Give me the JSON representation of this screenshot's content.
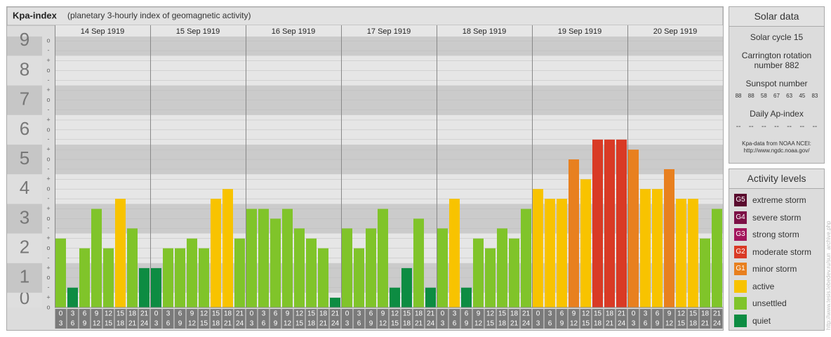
{
  "chart_data": {
    "type": "bar",
    "title": "Kpa-index",
    "subtitle": "(planetary 3-hourly index of geomagnetic activity)",
    "ylim": [
      0,
      9.15
    ],
    "yticks": [
      0,
      1,
      2,
      3,
      4,
      5,
      6,
      7,
      8,
      9
    ],
    "minor_yticks": [
      {
        "value": 0,
        "label": "o"
      },
      {
        "value": 0.33,
        "label": "+"
      },
      {
        "value": 0.67,
        "label": "-"
      },
      {
        "value": 1,
        "label": "o"
      },
      {
        "value": 1.33,
        "label": "+"
      },
      {
        "value": 1.67,
        "label": "-"
      },
      {
        "value": 2,
        "label": "o"
      },
      {
        "value": 2.33,
        "label": "+"
      },
      {
        "value": 2.67,
        "label": "-"
      },
      {
        "value": 3,
        "label": "o"
      },
      {
        "value": 3.33,
        "label": "+"
      },
      {
        "value": 3.67,
        "label": "-"
      },
      {
        "value": 4,
        "label": "o"
      },
      {
        "value": 4.33,
        "label": "+"
      },
      {
        "value": 4.67,
        "label": "-"
      },
      {
        "value": 5,
        "label": "o"
      },
      {
        "value": 5.33,
        "label": "+"
      },
      {
        "value": 5.67,
        "label": "-"
      },
      {
        "value": 6,
        "label": "o"
      },
      {
        "value": 6.33,
        "label": "+"
      },
      {
        "value": 6.67,
        "label": "-"
      },
      {
        "value": 7,
        "label": "o"
      },
      {
        "value": 7.33,
        "label": "+"
      },
      {
        "value": 7.67,
        "label": "-"
      },
      {
        "value": 8,
        "label": "o"
      },
      {
        "value": 8.33,
        "label": "+"
      },
      {
        "value": 8.67,
        "label": "-"
      },
      {
        "value": 9,
        "label": "o"
      }
    ],
    "hour_ranges": [
      [
        0,
        3
      ],
      [
        3,
        6
      ],
      [
        6,
        9
      ],
      [
        9,
        12
      ],
      [
        12,
        15
      ],
      [
        15,
        18
      ],
      [
        18,
        21
      ],
      [
        21,
        24
      ]
    ],
    "days": [
      {
        "date": "14 Sep 1919",
        "values": [
          2.33,
          0.67,
          2,
          3.33,
          2,
          3.67,
          2.67,
          1.33
        ],
        "colors": [
          "#80c42a",
          "#0d8c42",
          "#80c42a",
          "#80c42a",
          "#80c42a",
          "#f8c300",
          "#80c42a",
          "#0d8c42"
        ]
      },
      {
        "date": "15 Sep 1919",
        "values": [
          1.33,
          2,
          2,
          2.33,
          2,
          3.67,
          4,
          2.33
        ],
        "colors": [
          "#0d8c42",
          "#80c42a",
          "#80c42a",
          "#80c42a",
          "#80c42a",
          "#f8c300",
          "#f8c300",
          "#80c42a"
        ]
      },
      {
        "date": "16 Sep 1919",
        "values": [
          3.33,
          3.33,
          3,
          3.33,
          2.67,
          2.33,
          2,
          0.33
        ],
        "colors": [
          "#80c42a",
          "#80c42a",
          "#80c42a",
          "#80c42a",
          "#80c42a",
          "#80c42a",
          "#80c42a",
          "#0d8c42"
        ]
      },
      {
        "date": "17 Sep 1919",
        "values": [
          2.67,
          2,
          2.67,
          3.33,
          0.67,
          1.33,
          3,
          0.67
        ],
        "colors": [
          "#80c42a",
          "#80c42a",
          "#80c42a",
          "#80c42a",
          "#0d8c42",
          "#0d8c42",
          "#80c42a",
          "#0d8c42"
        ]
      },
      {
        "date": "18 Sep 1919",
        "values": [
          2.67,
          3.67,
          0.67,
          2.33,
          2,
          2.67,
          2.33,
          3.33
        ],
        "colors": [
          "#80c42a",
          "#f8c300",
          "#0d8c42",
          "#80c42a",
          "#80c42a",
          "#80c42a",
          "#80c42a",
          "#80c42a"
        ]
      },
      {
        "date": "19 Sep 1919",
        "values": [
          4,
          3.67,
          3.67,
          5,
          4.33,
          5.67,
          5.67,
          5.67
        ],
        "colors": [
          "#f8c300",
          "#f8c300",
          "#f8c300",
          "#e8801f",
          "#f8c300",
          "#d93a25",
          "#d93a25",
          "#d93a25"
        ]
      },
      {
        "date": "20 Sep 1919",
        "values": [
          5.33,
          4,
          4,
          4.67,
          3.67,
          3.67,
          2.33,
          3.33
        ],
        "colors": [
          "#e8801f",
          "#f8c300",
          "#f8c300",
          "#e8801f",
          "#f8c300",
          "#f8c300",
          "#80c42a",
          "#80c42a"
        ]
      }
    ]
  },
  "solar_data": {
    "title": "Solar data",
    "cycle": "Solar cycle 15",
    "carrington": "Carrington rotation number 882",
    "sunspot_title": "Sunspot number",
    "sunspot_numbers": [
      88,
      88,
      58,
      67,
      63,
      45,
      83
    ],
    "ap_title": "Daily Ap-index",
    "ap_values": [
      "--",
      "--",
      "--",
      "--",
      "--",
      "--",
      "--"
    ],
    "source": "Kpa-data from NOAA NCEI:",
    "source_url": "http://www.ngdc.noaa.gov/"
  },
  "activity_levels": {
    "title": "Activity levels",
    "items": [
      {
        "code": "G5",
        "name": "extreme storm",
        "color": "#5a0a2e"
      },
      {
        "code": "G4",
        "name": "severe storm",
        "color": "#7c1046"
      },
      {
        "code": "G3",
        "name": "strong storm",
        "color": "#a3155c"
      },
      {
        "code": "G2",
        "name": "moderate storm",
        "color": "#d93a25"
      },
      {
        "code": "G1",
        "name": "minor storm",
        "color": "#e8801f"
      },
      {
        "name": "active",
        "color": "#f8c300"
      },
      {
        "name": "unsettled",
        "color": "#80c42a"
      },
      {
        "name": "quiet",
        "color": "#0d8c42"
      }
    ]
  },
  "credit": "http://www.tesis.lebedev.ru/sun_archive.php"
}
